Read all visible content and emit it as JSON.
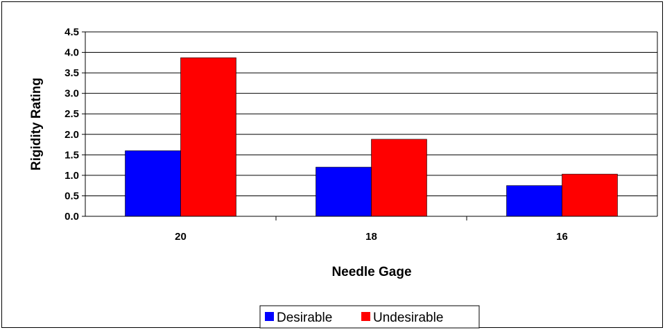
{
  "chart_data": {
    "type": "bar",
    "categories": [
      "20",
      "18",
      "16"
    ],
    "series": [
      {
        "name": "Desirable",
        "values": [
          1.6,
          1.2,
          0.75
        ],
        "color": "#0000ff"
      },
      {
        "name": "Undesirable",
        "values": [
          3.87,
          1.88,
          1.03
        ],
        "color": "#ff0000"
      }
    ],
    "xlabel": "Needle Gage",
    "ylabel": "Rigidity Rating",
    "ylim": [
      0,
      4.5
    ],
    "yticks": [
      "0.0",
      "0.5",
      "1.0",
      "1.5",
      "2.0",
      "2.5",
      "3.0",
      "3.5",
      "4.0",
      "4.5"
    ],
    "grid": true,
    "legend_position": "bottom"
  }
}
